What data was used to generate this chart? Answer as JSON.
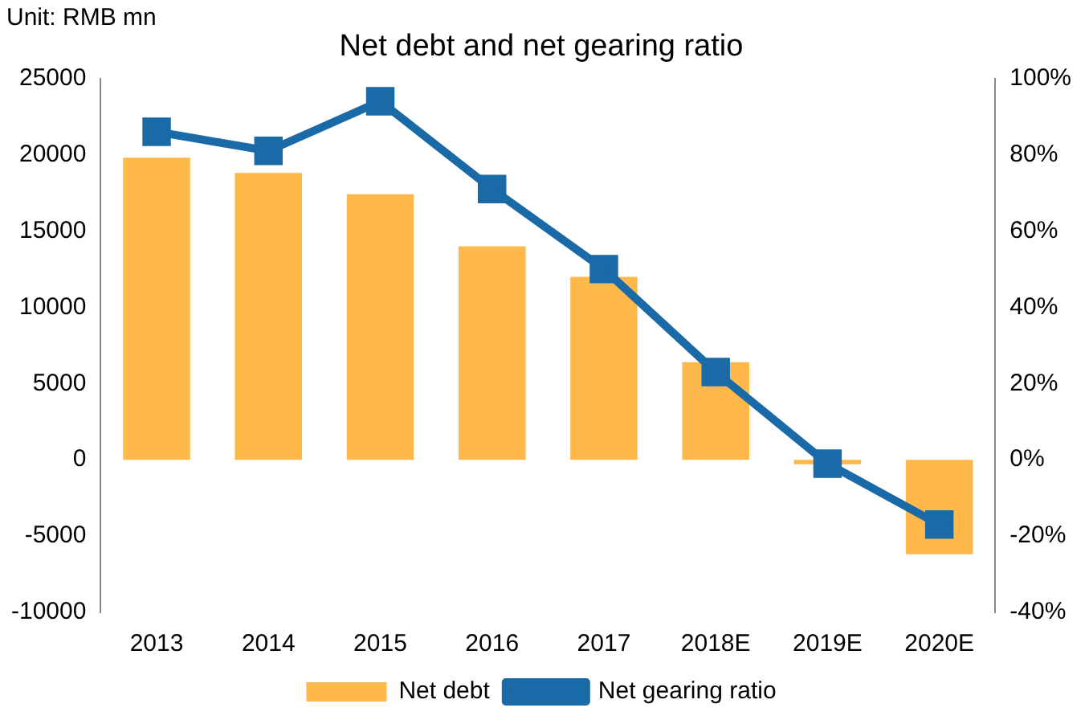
{
  "chart_data": {
    "type": "bar",
    "title": "Net debt and net gearing ratio",
    "annotations": [
      "Unit: RMB mn"
    ],
    "categories": [
      "2013",
      "2014",
      "2015",
      "2016",
      "2017",
      "2018E",
      "2019E",
      "2020E"
    ],
    "series": [
      {
        "name": "Net debt",
        "type": "bar",
        "color": "#ffb94a",
        "values": [
          19800,
          18800,
          17400,
          14000,
          12000,
          6400,
          -300,
          -6200
        ]
      },
      {
        "name": "Net gearing ratio",
        "type": "line",
        "axis": "y2",
        "color": "#1b6aa8",
        "marker": "square",
        "values": [
          86,
          81,
          94,
          71,
          50,
          23,
          -1,
          -17
        ]
      }
    ],
    "ylim": [
      -10000,
      25000
    ],
    "yticks": [
      -10000,
      -5000,
      0,
      5000,
      10000,
      15000,
      20000,
      25000
    ],
    "y2lim": [
      -40,
      100
    ],
    "y2ticks": [
      {
        "value": -40,
        "label": "-40%"
      },
      {
        "value": -20,
        "label": "-20%"
      },
      {
        "value": 0,
        "label": "0%"
      },
      {
        "value": 20,
        "label": "20%"
      },
      {
        "value": 40,
        "label": "40%"
      },
      {
        "value": 60,
        "label": "60%"
      },
      {
        "value": 80,
        "label": "80%"
      },
      {
        "value": 100,
        "label": "100%"
      }
    ],
    "grid": false,
    "legend": "bottom"
  }
}
